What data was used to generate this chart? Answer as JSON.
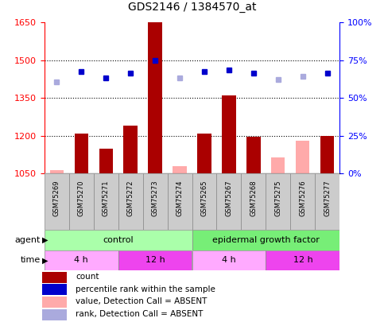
{
  "title": "GDS2146 / 1384570_at",
  "samples": [
    "GSM75269",
    "GSM75270",
    "GSM75271",
    "GSM75272",
    "GSM75273",
    "GSM75274",
    "GSM75265",
    "GSM75267",
    "GSM75268",
    "GSM75275",
    "GSM75276",
    "GSM75277"
  ],
  "count_values": [
    null,
    1210,
    1150,
    1240,
    1650,
    null,
    1210,
    1360,
    1195,
    null,
    null,
    1200
  ],
  "count_absent": [
    1065,
    null,
    null,
    null,
    null,
    1080,
    null,
    null,
    null,
    1115,
    1180,
    null
  ],
  "rank_values": [
    null,
    1455,
    1430,
    1450,
    1500,
    null,
    1455,
    1460,
    1450,
    null,
    null,
    1450
  ],
  "rank_absent": [
    1415,
    null,
    null,
    null,
    null,
    1430,
    null,
    null,
    null,
    1425,
    1435,
    null
  ],
  "ylim_left": [
    1050,
    1650
  ],
  "yticks_left": [
    1050,
    1200,
    1350,
    1500,
    1650
  ],
  "ytick_labels_right": [
    "0%",
    "25%",
    "50%",
    "75%",
    "100%"
  ],
  "hlines": [
    1200,
    1350,
    1500
  ],
  "bar_color": "#AA0000",
  "bar_absent_color": "#FFAAAA",
  "rank_color": "#0000CC",
  "rank_absent_color": "#AAAADD",
  "agent_groups": [
    {
      "label": "control",
      "start": 0,
      "end": 6,
      "color": "#AAFFAA"
    },
    {
      "label": "epidermal growth factor",
      "start": 6,
      "end": 12,
      "color": "#77EE77"
    }
  ],
  "time_groups": [
    {
      "label": "4 h",
      "start": 0,
      "end": 3,
      "color": "#FFAAFF"
    },
    {
      "label": "12 h",
      "start": 3,
      "end": 6,
      "color": "#EE44EE"
    },
    {
      "label": "4 h",
      "start": 6,
      "end": 9,
      "color": "#FFAAFF"
    },
    {
      "label": "12 h",
      "start": 9,
      "end": 12,
      "color": "#EE44EE"
    }
  ],
  "legend_items": [
    {
      "label": "count",
      "color": "#AA0000"
    },
    {
      "label": "percentile rank within the sample",
      "color": "#0000CC"
    },
    {
      "label": "value, Detection Call = ABSENT",
      "color": "#FFAAAA"
    },
    {
      "label": "rank, Detection Call = ABSENT",
      "color": "#AAAADD"
    }
  ]
}
